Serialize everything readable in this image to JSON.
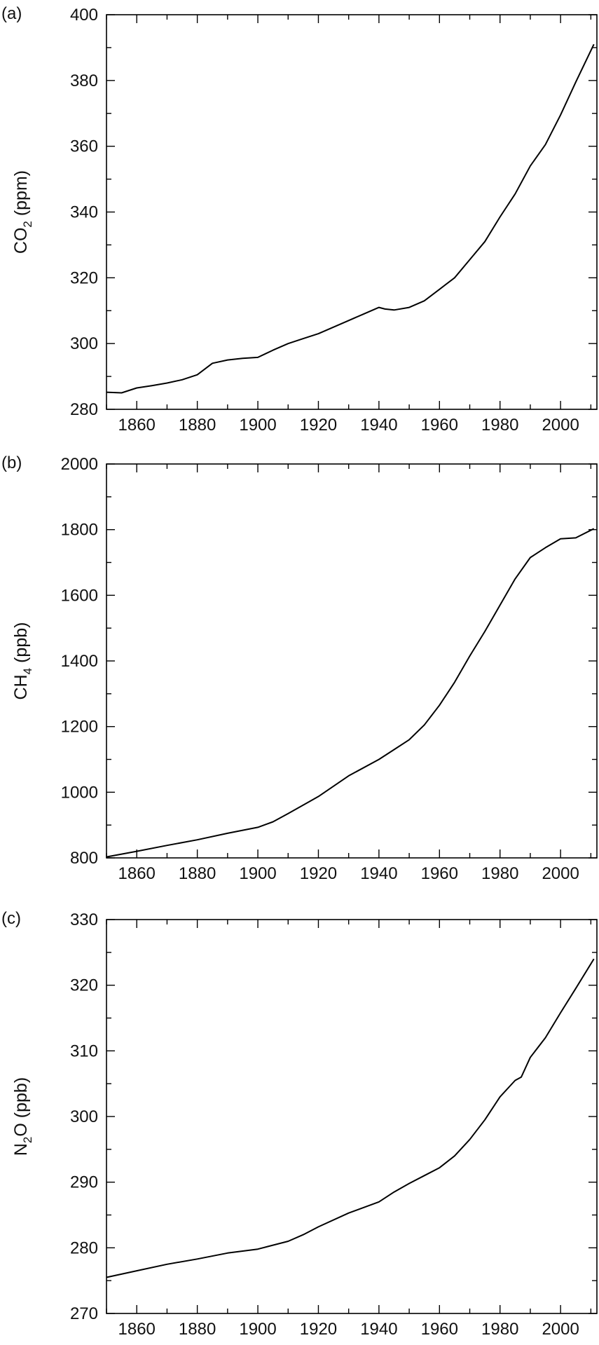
{
  "chart_data": [
    {
      "type": "line",
      "panel_label": "(a)",
      "ylabel": {
        "main": "CO",
        "sub": "2",
        "rest": " (ppm)"
      },
      "xlim": [
        1850,
        2012
      ],
      "ylim": [
        280,
        400
      ],
      "xticks": [
        1860,
        1880,
        1900,
        1920,
        1940,
        1960,
        1980,
        2000
      ],
      "yticks": [
        280,
        300,
        320,
        340,
        360,
        380,
        400
      ],
      "x_minor_step": 10,
      "y_minor_step": 10,
      "series": [
        {
          "x": [
            1850,
            1855,
            1860,
            1865,
            1870,
            1875,
            1880,
            1885,
            1890,
            1895,
            1900,
            1905,
            1910,
            1915,
            1920,
            1925,
            1930,
            1935,
            1940,
            1942,
            1945,
            1950,
            1955,
            1960,
            1965,
            1970,
            1975,
            1980,
            1985,
            1990,
            1995,
            2000,
            2005,
            2011
          ],
          "y": [
            285.2,
            285.0,
            286.5,
            287.2,
            288.0,
            289.0,
            290.5,
            294.0,
            295.0,
            295.5,
            295.8,
            298.0,
            300.0,
            301.5,
            303.0,
            305.0,
            307.0,
            309.0,
            311.0,
            310.5,
            310.2,
            311.0,
            313.0,
            316.5,
            320.0,
            325.5,
            331.0,
            338.5,
            345.5,
            354.0,
            360.5,
            369.5,
            379.5,
            391.0
          ]
        }
      ]
    },
    {
      "type": "line",
      "panel_label": "(b)",
      "ylabel": {
        "main": "CH",
        "sub": "4",
        "rest": " (ppb)"
      },
      "xlim": [
        1850,
        2012
      ],
      "ylim": [
        800,
        2000
      ],
      "xticks": [
        1860,
        1880,
        1900,
        1920,
        1940,
        1960,
        1980,
        2000
      ],
      "yticks": [
        800,
        1000,
        1200,
        1400,
        1600,
        1800,
        2000
      ],
      "x_minor_step": 10,
      "y_minor_step": 100,
      "series": [
        {
          "x": [
            1850,
            1860,
            1870,
            1880,
            1890,
            1900,
            1905,
            1910,
            1920,
            1930,
            1940,
            1945,
            1950,
            1955,
            1960,
            1965,
            1970,
            1975,
            1980,
            1985,
            1990,
            1995,
            2000,
            2005,
            2011
          ],
          "y": [
            803,
            820,
            838,
            855,
            875,
            893,
            910,
            935,
            987,
            1050,
            1100,
            1130,
            1160,
            1205,
            1265,
            1335,
            1415,
            1490,
            1570,
            1650,
            1715,
            1745,
            1772,
            1775,
            1803
          ]
        }
      ]
    },
    {
      "type": "line",
      "panel_label": "(c)",
      "ylabel": {
        "main": "N",
        "sub": "2",
        "rest": "O (ppb)"
      },
      "xlim": [
        1850,
        2012
      ],
      "ylim": [
        270,
        330
      ],
      "xticks": [
        1860,
        1880,
        1900,
        1920,
        1940,
        1960,
        1980,
        2000
      ],
      "yticks": [
        270,
        280,
        290,
        300,
        310,
        320,
        330
      ],
      "x_minor_step": 10,
      "y_minor_step": 5,
      "series": [
        {
          "x": [
            1850,
            1860,
            1870,
            1880,
            1890,
            1900,
            1910,
            1915,
            1920,
            1930,
            1940,
            1945,
            1950,
            1955,
            1960,
            1965,
            1970,
            1975,
            1980,
            1985,
            1987,
            1990,
            1995,
            2000,
            2005,
            2011
          ],
          "y": [
            275.5,
            276.5,
            277.5,
            278.3,
            279.2,
            279.8,
            281.0,
            282.0,
            283.2,
            285.3,
            287.0,
            288.5,
            289.8,
            291.0,
            292.2,
            294.0,
            296.5,
            299.5,
            303.0,
            305.5,
            306.0,
            309.0,
            312.0,
            315.8,
            319.5,
            324.0
          ]
        }
      ]
    }
  ]
}
